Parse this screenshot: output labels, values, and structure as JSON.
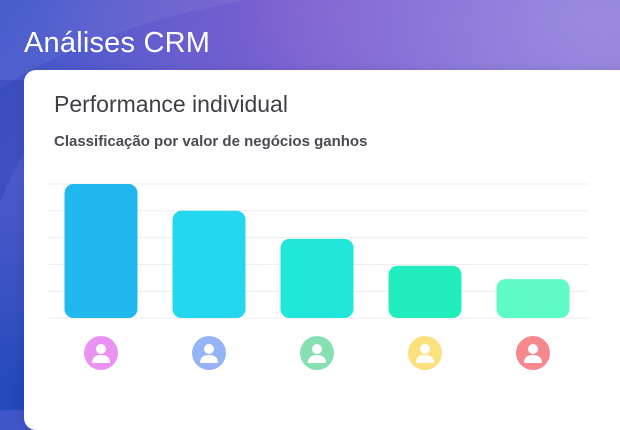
{
  "app": {
    "title": "Análises CRM"
  },
  "card": {
    "title": "Performance individual",
    "subtitle": "Classificação por valor de negócios ganhos"
  },
  "chart_data": {
    "type": "bar",
    "title": "Performance individual",
    "subtitle": "Classificação por valor de negócios ganhos",
    "xlabel": "",
    "ylabel": "",
    "categories": [
      "",
      "",
      "",
      "",
      ""
    ],
    "values": [
      100,
      80,
      59,
      39,
      29
    ],
    "ylim": [
      0,
      100
    ],
    "grid": true,
    "legend": "none",
    "bar_colors": [
      "#22b8ee",
      "#23d7ef",
      "#21e6da",
      "#23edbd",
      "#5ffbc6"
    ],
    "avatar_colors": [
      "#e992f2",
      "#95b3f7",
      "#86e0b3",
      "#fbe27e",
      "#f6888e"
    ],
    "avatar_icon": "user-icon"
  }
}
